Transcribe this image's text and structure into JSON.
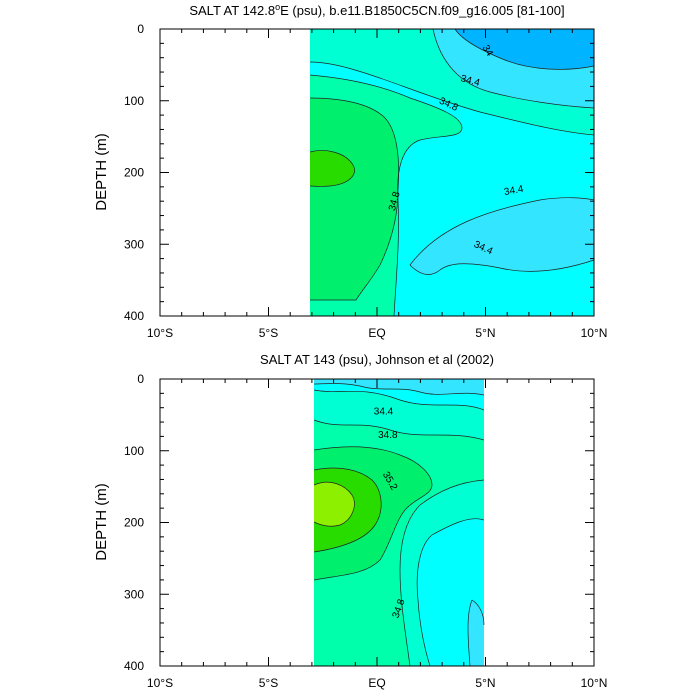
{
  "chart_data": [
    {
      "type": "contour",
      "title": "SALT AT 142.8°E (psu), b.e11.B1850C5CN.f09_g16.005 [81-100]",
      "title_main": "SALT AT 142.8",
      "title_deg": "o",
      "title_rest": "E (psu), b.e11.B1850C5CN.f09_g16.005 [81-100]",
      "xlabel": "",
      "ylabel": "DEPTH (m)",
      "xlim": [
        -10,
        10
      ],
      "ylim": [
        400,
        0
      ],
      "x_ticks": [
        -10,
        -5,
        0,
        5,
        10
      ],
      "x_tick_labels": [
        "10°S",
        "5°S",
        "EQ",
        "5°N",
        "10°N"
      ],
      "y_ticks": [
        0,
        100,
        200,
        300,
        400
      ],
      "y_tick_labels": [
        "0",
        "100",
        "200",
        "300",
        "400"
      ],
      "data_extent_x": [
        -3,
        10
      ],
      "contour_labels": [
        {
          "text": "34",
          "x": 5.1,
          "depth": 30,
          "angle": 60
        },
        {
          "text": "34.4",
          "x": 4.3,
          "depth": 72,
          "angle": 15
        },
        {
          "text": "34.8",
          "x": 3.3,
          "depth": 105,
          "angle": 25
        },
        {
          "text": "34.8",
          "x": 0.8,
          "depth": 240,
          "angle": -75
        },
        {
          "text": "34.4",
          "x": 6.3,
          "depth": 225,
          "angle": -10
        },
        {
          "text": "34.4",
          "x": 4.9,
          "depth": 305,
          "angle": 25
        }
      ]
    },
    {
      "type": "contour",
      "title": "SALT AT 143 (psu), Johnson et al (2002)",
      "title_main": "SALT AT 143 (psu), Johnson et al (2002)",
      "xlabel": "",
      "ylabel": "DEPTH (m)",
      "xlim": [
        -10,
        10
      ],
      "ylim": [
        400,
        0
      ],
      "x_ticks": [
        -10,
        -5,
        0,
        5,
        10
      ],
      "x_tick_labels": [
        "10°S",
        "5°S",
        "EQ",
        "5°N",
        "10°N"
      ],
      "y_ticks": [
        0,
        100,
        200,
        300,
        400
      ],
      "y_tick_labels": [
        "0",
        "100",
        "200",
        "300",
        "400"
      ],
      "data_extent_x": [
        -2.8,
        5
      ],
      "contour_labels": [
        {
          "text": "34.4",
          "x": 0.3,
          "depth": 45,
          "angle": 0
        },
        {
          "text": "34.8",
          "x": 0.5,
          "depth": 78,
          "angle": 0
        },
        {
          "text": "35.2",
          "x": 0.6,
          "depth": 142,
          "angle": 60
        },
        {
          "text": "34.8",
          "x": 1.0,
          "depth": 320,
          "angle": -70
        }
      ]
    }
  ],
  "colors": {
    "cyan": "#00ffff",
    "light_blue": "#33e5ff",
    "blue": "#00b4ff",
    "aqua_green": "#00ffd2",
    "mint": "#00ffaa",
    "green": "#00f06e",
    "bright_green": "#28dc00",
    "lime": "#8cf000"
  }
}
